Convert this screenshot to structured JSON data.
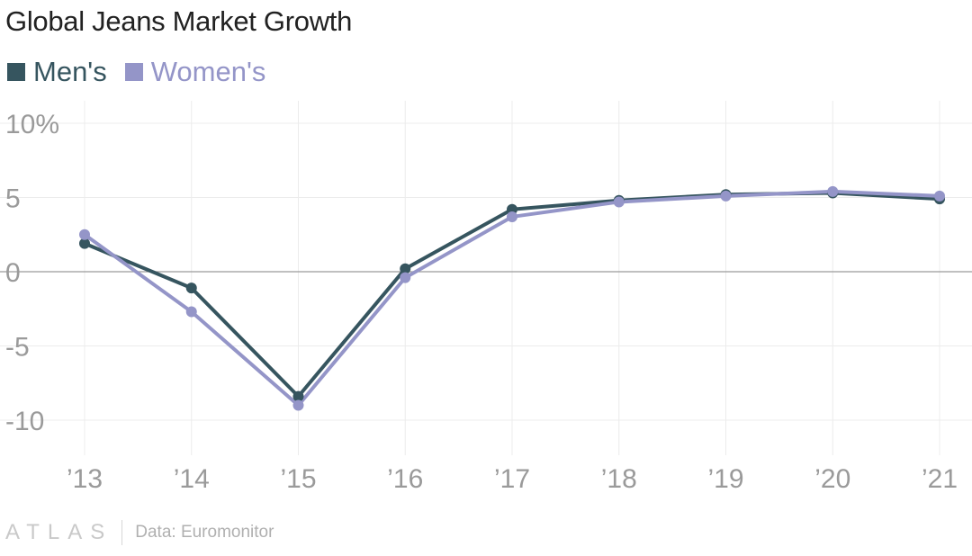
{
  "chart_data": {
    "type": "line",
    "title": "Global Jeans Market Growth",
    "x": [
      "’13",
      "’14",
      "’15",
      "’16",
      "’17",
      "’18",
      "’19",
      "’20",
      "’21"
    ],
    "series": [
      {
        "name": "Men's",
        "color": "#36555f",
        "values": [
          1.9,
          -1.1,
          -8.4,
          0.2,
          4.2,
          4.8,
          5.2,
          5.3,
          4.9
        ]
      },
      {
        "name": "Women's",
        "color": "#9495c8",
        "values": [
          2.5,
          -2.7,
          -9.0,
          -0.4,
          3.7,
          4.7,
          5.1,
          5.4,
          5.1
        ]
      }
    ],
    "yticks": [
      {
        "value": 10,
        "label": "10%"
      },
      {
        "value": 5,
        "label": "5"
      },
      {
        "value": 0,
        "label": "0"
      },
      {
        "value": -5,
        "label": "-5"
      },
      {
        "value": -10,
        "label": "-10"
      }
    ],
    "ylim": [
      -10,
      10
    ],
    "grid": true
  },
  "footer": {
    "brand": "ATLAS",
    "source": "Data: Euromonitor"
  }
}
